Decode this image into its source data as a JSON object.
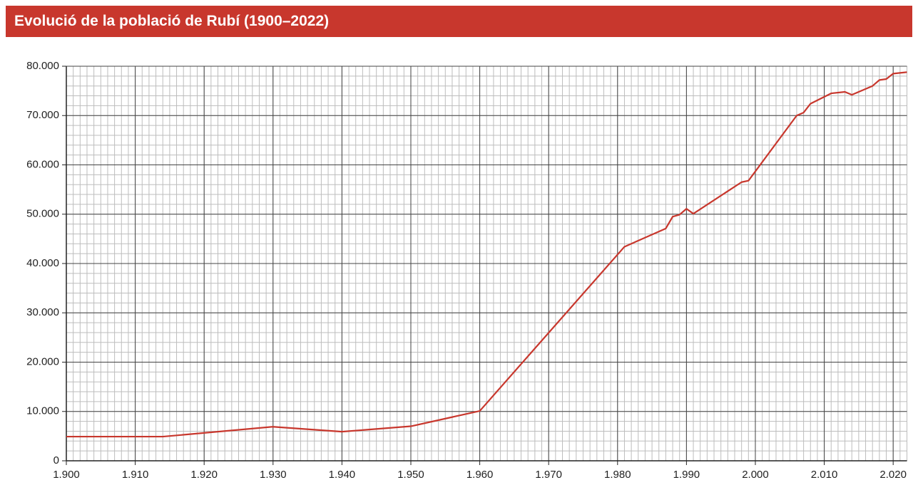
{
  "chart_data": {
    "type": "line",
    "title": "Evolució de la població de Rubí (1900–2022)",
    "x": [
      1900,
      1914,
      1930,
      1940,
      1950,
      1960,
      1981,
      1987,
      1988,
      1989,
      1990,
      1991,
      1998,
      1999,
      2006,
      2007,
      2008,
      2011,
      2013,
      2014,
      2017,
      2018,
      2019,
      2020,
      2022
    ],
    "series": [
      {
        "name": "Població",
        "color": "#c8372d",
        "values": [
          4900,
          4900,
          6900,
          5900,
          7000,
          10100,
          43400,
          47100,
          49500,
          49900,
          51100,
          50100,
          56500,
          56800,
          70000,
          70600,
          72400,
          74500,
          74800,
          74200,
          76000,
          77200,
          77400,
          78500,
          78800
        ]
      }
    ],
    "xlim": [
      1900,
      2022
    ],
    "xticks": [
      {
        "value": 1900,
        "label": "1.900"
      },
      {
        "value": 1910,
        "label": "1.910"
      },
      {
        "value": 1920,
        "label": "1.920"
      },
      {
        "value": 1930,
        "label": "1.930"
      },
      {
        "value": 1940,
        "label": "1.940"
      },
      {
        "value": 1950,
        "label": "1.950"
      },
      {
        "value": 1960,
        "label": "1.960"
      },
      {
        "value": 1970,
        "label": "1.970"
      },
      {
        "value": 1980,
        "label": "1.980"
      },
      {
        "value": 1990,
        "label": "1.990"
      },
      {
        "value": 2000,
        "label": "2.000"
      },
      {
        "value": 2010,
        "label": "2.010"
      },
      {
        "value": 2020,
        "label": "2.020"
      }
    ],
    "ylim": [
      0,
      80000
    ],
    "yticks": [
      0,
      {
        "value": 10000,
        "label": "10.000"
      },
      {
        "value": 20000,
        "label": "20.000"
      },
      {
        "value": 30000,
        "label": "30.000"
      },
      {
        "value": 40000,
        "label": "40.000"
      },
      {
        "value": 50000,
        "label": "50.000"
      },
      {
        "value": 60000,
        "label": "60.000"
      },
      {
        "value": 70000,
        "label": "70.000"
      },
      {
        "value": 80000,
        "label": "80.000"
      }
    ],
    "grid": true,
    "minor_grid": true
  }
}
